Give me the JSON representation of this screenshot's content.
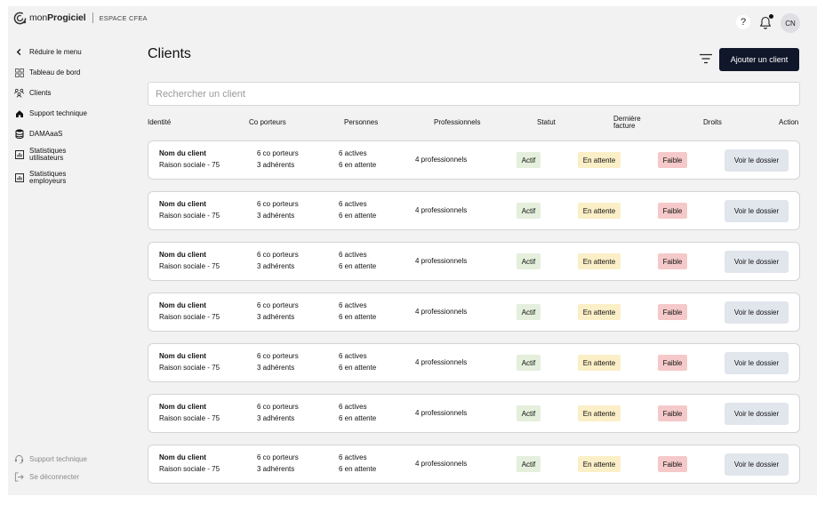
{
  "brand": {
    "name_light": "mon",
    "name_bold": "Progiciel",
    "space": "ESPACE CFEA"
  },
  "header": {
    "help_label": "?",
    "avatar_initials": "CN"
  },
  "sidebar": {
    "items": [
      {
        "label": "Réduire le menu",
        "icon": "chevron-left-icon"
      },
      {
        "label": "Tableau de bord",
        "icon": "grid-icon"
      },
      {
        "label": "Clients",
        "icon": "users-icon"
      },
      {
        "label": "Support technique",
        "icon": "home-icon"
      },
      {
        "label": "DAMAaaS",
        "icon": "database-icon"
      },
      {
        "label_line1": "Statistiques",
        "label_line2": "utilisateurs",
        "icon": "chart-icon"
      },
      {
        "label_line1": "Statistiques",
        "label_line2": "employeurs",
        "icon": "chart-icon"
      }
    ],
    "bottom": [
      {
        "label": "Support technique",
        "icon": "headset-icon"
      },
      {
        "label": "Se déconnecter",
        "icon": "logout-icon"
      }
    ]
  },
  "main": {
    "title": "Clients",
    "add_button": "Ajouter un client",
    "search_placeholder": "Rechercher un client",
    "columns": {
      "identite": "Identité",
      "coporteurs": "Co porteurs",
      "personnes": "Personnes",
      "professionnels": "Professionnels",
      "statut": "Statut",
      "facture_line1": "Dernière",
      "facture_line2": "facture",
      "droits": "Droits",
      "action": "Action"
    },
    "rows": [
      {
        "name": "Nom du client",
        "company": "Raison sociale - 75",
        "coporteurs": "6 co porteurs",
        "adherents": "3 adhérents",
        "actives": "6 actives",
        "attente": "6 en attente",
        "pros": "4 professionnels",
        "statut": "Actif",
        "facture": "En attente",
        "droits": "Faible",
        "action": "Voir le dossier"
      },
      {
        "name": "Nom du client",
        "company": "Raison sociale - 75",
        "coporteurs": "6 co porteurs",
        "adherents": "3 adhérents",
        "actives": "6 actives",
        "attente": "6 en attente",
        "pros": "4 professionnels",
        "statut": "Actif",
        "facture": "En attente",
        "droits": "Faible",
        "action": "Voir le dossier"
      },
      {
        "name": "Nom du client",
        "company": "Raison sociale - 75",
        "coporteurs": "6 co porteurs",
        "adherents": "3 adhérents",
        "actives": "6 actives",
        "attente": "6 en attente",
        "pros": "4 professionnels",
        "statut": "Actif",
        "facture": "En attente",
        "droits": "Faible",
        "action": "Voir le dossier"
      },
      {
        "name": "Nom du client",
        "company": "Raison sociale - 75",
        "coporteurs": "6 co porteurs",
        "adherents": "3 adhérents",
        "actives": "6 actives",
        "attente": "6 en attente",
        "pros": "4 professionnels",
        "statut": "Actif",
        "facture": "En attente",
        "droits": "Faible",
        "action": "Voir le dossier"
      },
      {
        "name": "Nom du client",
        "company": "Raison sociale - 75",
        "coporteurs": "6 co porteurs",
        "adherents": "3 adhérents",
        "actives": "6 actives",
        "attente": "6 en attente",
        "pros": "4 professionnels",
        "statut": "Actif",
        "facture": "En attente",
        "droits": "Faible",
        "action": "Voir le dossier"
      },
      {
        "name": "Nom du client",
        "company": "Raison sociale - 75",
        "coporteurs": "6 co porteurs",
        "adherents": "3 adhérents",
        "actives": "6 actives",
        "attente": "6 en attente",
        "pros": "4 professionnels",
        "statut": "Actif",
        "facture": "En attente",
        "droits": "Faible",
        "action": "Voir le dossier"
      },
      {
        "name": "Nom du client",
        "company": "Raison sociale - 75",
        "coporteurs": "6 co porteurs",
        "adherents": "3 adhérents",
        "actives": "6 actives",
        "attente": "6 en attente",
        "pros": "4 professionnels",
        "statut": "Actif",
        "facture": "En attente",
        "droits": "Faible",
        "action": "Voir le dossier"
      }
    ]
  },
  "colors": {
    "primary_button": "#10172a",
    "badge_actif": "#e4efdc",
    "badge_attente": "#fbefc7",
    "badge_faible": "#f5c9c9",
    "view_button": "#e1e5ec",
    "background": "#f2f2f3"
  }
}
